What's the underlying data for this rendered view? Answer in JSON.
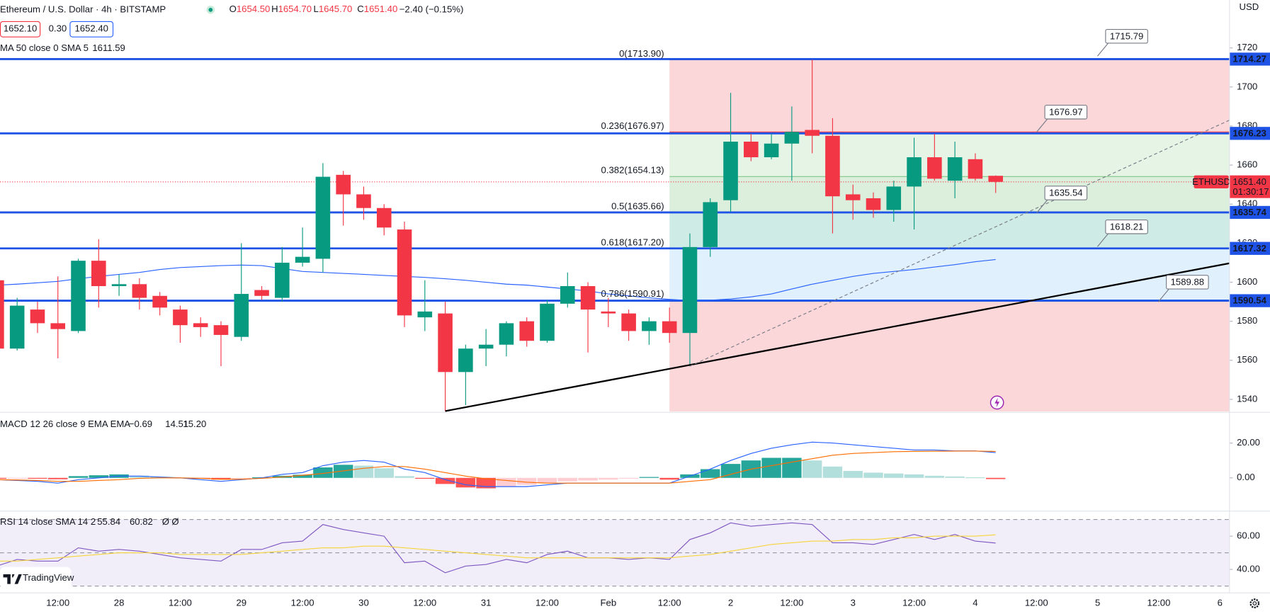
{
  "header": {
    "title": "Ethereum / U.S. Dollar · 4h · BITSTAMP",
    "ohlc": [
      {
        "key": "O",
        "value": "1654.50"
      },
      {
        "key": "H",
        "value": "1654.70"
      },
      {
        "key": "L",
        "value": "1645.70"
      },
      {
        "key": "C",
        "value": "1651.40"
      }
    ],
    "change": "−2.40 (−0.15%)",
    "bid": "1652.10",
    "spread": "0.30",
    "ask": "1652.40",
    "brand": "TradingView"
  },
  "chart_data": [
    {
      "type": "candlestick",
      "currency": "USD",
      "categories": [
        null,
        null,
        null,
        "12:00",
        null,
        null,
        "28",
        null,
        null,
        "12:00",
        null,
        null,
        "29",
        null,
        null,
        "12:00",
        null,
        null,
        "30",
        null,
        null,
        "12:00",
        null,
        null,
        "31",
        null,
        null,
        "12:00",
        null,
        null,
        "Feb",
        null,
        null,
        "12:00",
        null,
        null,
        "2",
        null,
        null,
        "12:00",
        null,
        null,
        "3",
        null,
        null,
        "12:00",
        null,
        null,
        "4",
        null,
        null,
        "12:00",
        null,
        null,
        "5",
        null,
        null,
        "12:00",
        null,
        null,
        "6"
      ],
      "xlim": [
        0.16,
        60.47
      ],
      "open": [
        1601,
        1566,
        1586,
        1579,
        1575,
        1611,
        1598,
        1599,
        1593,
        1586,
        1579,
        1578,
        1572,
        1596,
        1592,
        1610,
        1612,
        1655,
        1645,
        1638,
        1627,
        1582,
        1584,
        1554,
        1566,
        1568,
        1580,
        1570,
        1589,
        1598,
        1585,
        1584,
        1575,
        1580,
        1574,
        1618,
        1642,
        1672,
        1664,
        1671,
        1678,
        1675,
        1645,
        1643,
        1637,
        1649,
        1664,
        1652,
        1663,
        1654.5,
        null,
        null,
        null,
        null,
        null,
        null,
        null,
        null,
        null,
        null,
        null
      ],
      "high": [
        1602,
        1592,
        1590,
        1603,
        1612,
        1622,
        1604,
        1602,
        1595,
        1588,
        1582,
        1580,
        1620,
        1598,
        1618,
        1628,
        1661,
        1657,
        1649,
        1640,
        1631,
        1601,
        1590,
        1568,
        1576,
        1580,
        1582,
        1591,
        1605,
        1600,
        1592,
        1586,
        1582,
        1587,
        1625,
        1643,
        1697,
        1676,
        1676,
        1690,
        1714,
        1684,
        1650,
        1646,
        1652,
        1674,
        1676,
        1672,
        1666,
        1654.7,
        null,
        null,
        null,
        null,
        null,
        null,
        null,
        null,
        null,
        null,
        null
      ],
      "low": [
        1563,
        1565,
        1574,
        1561,
        1574,
        1587,
        1593,
        1586,
        1583,
        1569,
        1572,
        1557,
        1570,
        1591,
        1590,
        1608,
        1605,
        1629,
        1632,
        1624,
        1577,
        1575,
        1534,
        1537,
        1557,
        1562,
        1567,
        1569,
        1587,
        1564,
        1577,
        1570,
        1568,
        1569,
        1557,
        1613,
        1636,
        1662,
        1663,
        1652,
        1666,
        1625,
        1632,
        1633,
        1631,
        1627,
        1652,
        1643,
        1652,
        1645.7,
        null,
        null,
        null,
        null,
        null,
        null,
        null,
        null,
        null,
        null,
        null
      ],
      "close": [
        1566,
        1588,
        1579,
        1576,
        1611,
        1598,
        1599,
        1592,
        1587,
        1578,
        1577,
        1573,
        1594,
        1593,
        1610,
        1613,
        1654,
        1645,
        1638,
        1628,
        1583,
        1585,
        1554,
        1566,
        1568,
        1579,
        1570,
        1589,
        1598,
        1586,
        1584,
        1575,
        1580,
        1574,
        1618,
        1641,
        1672,
        1664,
        1671,
        1677,
        1675,
        1644,
        1642,
        1637,
        1649,
        1664,
        1653,
        1664,
        1653,
        1651.4,
        null,
        null,
        null,
        null,
        null,
        null,
        null,
        null,
        null,
        null,
        null
      ],
      "colors": {
        "up": "#089981",
        "down": "#f23645"
      },
      "ylim": [
        1533.8,
        1744.5
      ],
      "yticks": [
        1540,
        1560,
        1580,
        1600,
        1620,
        1640,
        1660,
        1680,
        1700,
        1720
      ],
      "ma": {
        "name": "MA 50 close 0 SMA 5",
        "readout": "1611.59",
        "color": "#2962ff",
        "values": [
          1598.5,
          1599,
          1599.7,
          1600.4,
          1601.8,
          1603,
          1604,
          1605,
          1606.5,
          1607.5,
          1608,
          1608.5,
          1608.8,
          1608.5,
          1607,
          1605.5,
          1605,
          1604.5,
          1604,
          1603.5,
          1603,
          1602.5,
          1601.8,
          1601,
          1600,
          1599,
          1598.5,
          1597.5,
          1596.5,
          1595.5,
          1594,
          1593,
          1592,
          1591.2,
          1590.6,
          1590.8,
          1591.4,
          1592.5,
          1594,
          1596.5,
          1599,
          1601,
          1603,
          1604.5,
          1605.5,
          1606.5,
          1607.8,
          1609,
          1610.5,
          1611.59,
          null,
          null,
          null,
          null,
          null,
          null,
          null,
          null,
          null,
          null,
          null
        ]
      },
      "last_price": {
        "value": 1651.4,
        "label": "1651.40",
        "countdown": "01:30:17",
        "symbol": "ETHUSD",
        "color": "#f23645"
      },
      "levels": [
        1714.27,
        1676.23,
        1635.74,
        1617.32,
        1590.54
      ],
      "level_color": "#1e53e5",
      "fib": {
        "start": 33,
        "levels": [
          {
            "value": 1713.9,
            "label": "0(1713.90)",
            "color": "#787b86"
          },
          {
            "value": 1676.97,
            "label": "0.236(1676.97)",
            "color": "#f23645"
          },
          {
            "value": 1654.13,
            "label": "0.382(1654.13)",
            "color": "#81c784"
          },
          {
            "value": 1635.66,
            "label": "0.5(1635.66)",
            "color": "#4caf50"
          },
          {
            "value": 1617.2,
            "label": "0.618(1617.20)",
            "color": "#089981"
          },
          {
            "value": 1590.91,
            "label": "0.786(1590.91)",
            "color": "#64b5f6"
          }
        ],
        "band_colors": [
          "rgba(242,54,69,0.2)",
          "rgba(129,199,132,0.2)",
          "rgba(76,175,80,0.2)",
          "rgba(8,153,129,0.2)",
          "rgba(100,181,246,0.2)",
          "rgba(242,54,69,0.2)"
        ]
      },
      "callouts": [
        1715.79,
        1676.97,
        1635.54,
        1618.21,
        1589.88
      ],
      "trendlines": [
        {
          "x": [
            22,
            60.47
          ],
          "y": [
            1534,
            1609.7
          ],
          "color": "#000000",
          "dashed": false
        },
        {
          "x": [
            34,
            60.47
          ],
          "y": [
            1557,
            1683
          ],
          "color": "#787b86",
          "dashed": true
        }
      ]
    },
    {
      "type": "macd",
      "title": "MACD 12 26 close 9 EMA EMA",
      "readouts": [
        "−0.69",
        "14.51",
        "15.20"
      ],
      "ylim": [
        -18.6,
        37.2
      ],
      "yticks": [
        {
          "value": 0,
          "label": "0.00"
        },
        {
          "value": 20,
          "label": "20.00"
        }
      ],
      "histogram": {
        "colors": [
          "#26a69a",
          "#b2dfdb",
          "#ffcdd2",
          "#ff5252"
        ],
        "values": [
          -0.5,
          -0.3,
          -0.5,
          -0.8,
          1,
          1.5,
          2,
          1.3,
          0.6,
          0.2,
          -0.5,
          -1,
          -0.2,
          0.3,
          1.2,
          1.8,
          6,
          7.5,
          7,
          5.5,
          1,
          -0.5,
          -3.5,
          -5.5,
          -6,
          -5,
          -4,
          -3,
          -2,
          -1.5,
          -1,
          -0.3,
          0.5,
          -1,
          2,
          5,
          8,
          10,
          11.5,
          11.5,
          10,
          6.5,
          4,
          3,
          2.5,
          2,
          1.2,
          0.8,
          0.3,
          -0.69,
          null,
          null,
          null,
          null,
          null,
          null,
          null,
          null,
          null,
          null,
          null
        ]
      },
      "series": [
        {
          "color": "#2962ff",
          "values": [
            -1,
            -1.5,
            -2,
            -3,
            -1,
            0,
            1,
            1,
            0.5,
            0,
            -1,
            -2,
            -1,
            0,
            2,
            3,
            7,
            9,
            10,
            9,
            5,
            3,
            -1,
            -4,
            -5,
            -5,
            -5,
            -4,
            -3,
            -3,
            -3,
            -3,
            -3,
            -3,
            1,
            5,
            10,
            14,
            17,
            19,
            20.5,
            20,
            19,
            18,
            17,
            16,
            16,
            15.5,
            15.5,
            14.51,
            null,
            null,
            null,
            null,
            null,
            null,
            null,
            null,
            null,
            null,
            null
          ]
        },
        {
          "color": "#ff6d00",
          "values": [
            -1,
            -1.2,
            -1.5,
            -2,
            -2,
            -1.5,
            -1,
            -0.3,
            0,
            0,
            -0.3,
            -0.8,
            -0.8,
            -0.3,
            0.5,
            1.5,
            2.5,
            4,
            5.5,
            6.5,
            6.5,
            5,
            3,
            1,
            -0.5,
            -1.5,
            -2.5,
            -3,
            -3,
            -3,
            -3,
            -3,
            -3,
            -3,
            -2,
            -1,
            2,
            5,
            7,
            9,
            11,
            13,
            14,
            14.5,
            15,
            15.2,
            15.3,
            15.4,
            15.4,
            15.2,
            null,
            null,
            null,
            null,
            null,
            null,
            null,
            null,
            null,
            null,
            null
          ]
        }
      ]
    },
    {
      "type": "rsi",
      "title": "RSI 14 close SMA 14 2",
      "readouts": [
        "55.84",
        "60.82",
        "Ø",
        "Ø"
      ],
      "ylim": [
        25.9,
        74.6
      ],
      "yticks": [
        {
          "value": 40,
          "label": "40.00"
        },
        {
          "value": 60,
          "label": "60.00"
        }
      ],
      "bands": [
        30,
        50,
        70
      ],
      "band_color": "rgba(126,87,194,0.1)",
      "series": [
        {
          "color": "#7e57c2",
          "values": [
            42,
            46,
            45,
            45,
            53,
            51,
            52,
            51,
            49,
            47,
            46,
            45,
            52,
            52,
            56,
            57,
            67,
            64,
            62,
            60,
            44,
            45,
            38,
            42,
            43,
            46,
            44,
            49,
            51,
            47,
            47,
            46,
            47,
            46,
            58,
            62,
            68,
            66,
            67,
            68,
            67,
            56,
            56,
            55,
            58,
            61,
            58,
            61,
            57,
            55.84,
            null,
            null,
            null,
            null,
            null,
            null,
            null,
            null,
            null,
            null,
            null
          ]
        },
        {
          "color": "#f5d43b",
          "values": [
            45,
            45,
            46,
            47,
            48,
            49,
            50,
            50,
            50,
            49,
            49,
            49,
            49,
            50,
            51,
            52,
            53,
            53,
            54,
            54,
            53,
            52,
            51,
            50,
            49,
            48,
            47,
            47,
            47,
            47,
            47,
            47,
            47,
            47,
            48,
            49,
            51,
            53,
            55,
            56,
            57,
            57,
            58,
            58,
            59,
            59,
            60,
            60,
            60,
            60.82,
            null,
            null,
            null,
            null,
            null,
            null,
            null,
            null,
            null,
            null,
            null
          ]
        }
      ]
    }
  ]
}
